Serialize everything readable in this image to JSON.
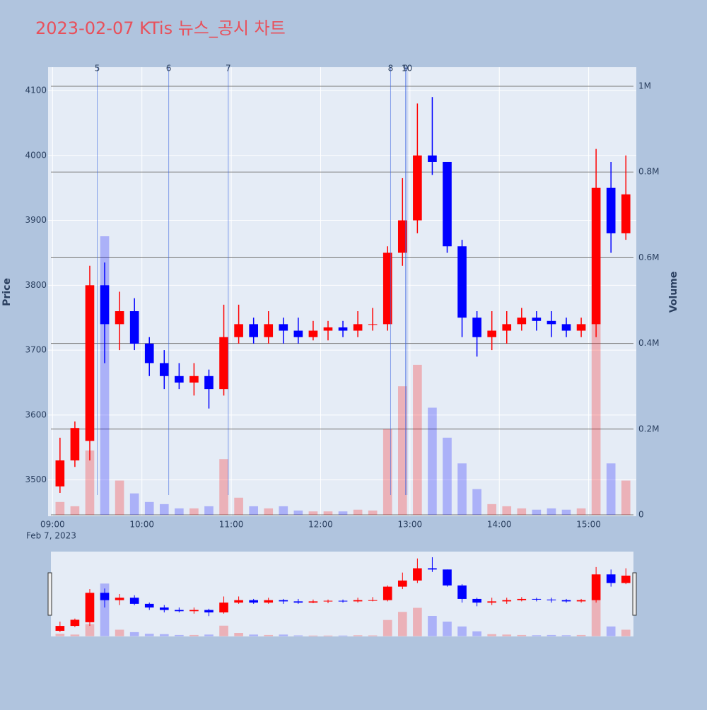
{
  "chart_data": {
    "type": "candlestick",
    "title": "2023-02-07 KTis 뉴스_공시 차트",
    "title_color": "#e8505b",
    "y_label": "Price",
    "y2_label": "Volume",
    "date_label": "Feb 7, 2023",
    "x": [
      "09:00",
      "09:10",
      "09:20",
      "09:30",
      "09:40",
      "09:50",
      "10:00",
      "10:10",
      "10:20",
      "10:30",
      "10:40",
      "10:50",
      "11:00",
      "11:10",
      "11:20",
      "11:30",
      "11:40",
      "11:50",
      "12:00",
      "12:10",
      "12:20",
      "12:30",
      "12:40",
      "12:50",
      "13:00",
      "13:10",
      "13:20",
      "13:30",
      "13:40",
      "13:50",
      "14:00",
      "14:10",
      "14:20",
      "14:30",
      "14:40",
      "14:50",
      "15:00",
      "15:10",
      "15:20"
    ],
    "open": [
      3490,
      3530,
      3560,
      3800,
      3740,
      3760,
      3710,
      3680,
      3660,
      3650,
      3660,
      3640,
      3720,
      3740,
      3720,
      3740,
      3730,
      3720,
      3730,
      3735,
      3730,
      3740,
      3740,
      3850,
      3900,
      4000,
      3990,
      3860,
      3750,
      3720,
      3730,
      3740,
      3750,
      3745,
      3740,
      3730,
      3740,
      3950,
      3880
    ],
    "high": [
      3565,
      3590,
      3830,
      3835,
      3790,
      3780,
      3720,
      3700,
      3680,
      3680,
      3670,
      3770,
      3770,
      3750,
      3760,
      3750,
      3750,
      3745,
      3745,
      3745,
      3760,
      3765,
      3860,
      3965,
      4080,
      4090,
      3990,
      3870,
      3760,
      3760,
      3760,
      3765,
      3760,
      3760,
      3750,
      3750,
      4010,
      3990,
      4000
    ],
    "low": [
      3480,
      3520,
      3530,
      3680,
      3700,
      3700,
      3660,
      3640,
      3640,
      3630,
      3610,
      3630,
      3710,
      3710,
      3710,
      3710,
      3710,
      3715,
      3715,
      3720,
      3720,
      3730,
      3730,
      3830,
      3880,
      3970,
      3850,
      3720,
      3690,
      3700,
      3710,
      3730,
      3730,
      3720,
      3720,
      3720,
      3720,
      3850,
      3870
    ],
    "close": [
      3530,
      3580,
      3800,
      3740,
      3760,
      3710,
      3680,
      3660,
      3650,
      3660,
      3640,
      3720,
      3740,
      3720,
      3740,
      3730,
      3720,
      3730,
      3735,
      3730,
      3740,
      3740,
      3850,
      3900,
      4000,
      3990,
      3860,
      3750,
      3720,
      3730,
      3740,
      3750,
      3745,
      3740,
      3730,
      3740,
      3950,
      3880,
      3940
    ],
    "volume": [
      30000,
      20000,
      150000,
      650000,
      80000,
      50000,
      30000,
      25000,
      15000,
      15000,
      20000,
      130000,
      40000,
      20000,
      15000,
      20000,
      10000,
      8000,
      8000,
      8000,
      12000,
      10000,
      200000,
      300000,
      350000,
      250000,
      180000,
      120000,
      60000,
      25000,
      20000,
      15000,
      12000,
      15000,
      12000,
      15000,
      450000,
      120000,
      80000
    ],
    "up_color": "#ff0000",
    "down_color": "#0000ff",
    "news": [
      {
        "x": "09:30",
        "label": "5"
      },
      {
        "x": "10:18",
        "label": "6"
      },
      {
        "x": "10:58",
        "label": "7"
      },
      {
        "x": "12:47",
        "label": "8"
      },
      {
        "x": "12:57",
        "label": "9"
      },
      {
        "x": "12:58",
        "label": "10"
      }
    ],
    "xlim": [
      "08:57",
      "15:32"
    ],
    "xticks": [
      "09:00",
      "10:00",
      "11:00",
      "12:00",
      "13:00",
      "14:00",
      "15:00"
    ],
    "ylim": [
      3444,
      4136
    ],
    "yticks": [
      3500,
      3600,
      3700,
      3800,
      3900,
      4000,
      4100
    ],
    "y2lim": [
      -3300,
      1044554
    ],
    "y2ticks": [
      0,
      {
        "value": 200000,
        "label": "0.2M"
      },
      {
        "value": 400000,
        "label": "0.4M"
      },
      {
        "value": 600000,
        "label": "0.6M"
      },
      {
        "value": 800000,
        "label": "0.8M"
      },
      {
        "value": 1000000,
        "label": "1M"
      }
    ],
    "grid": true
  }
}
